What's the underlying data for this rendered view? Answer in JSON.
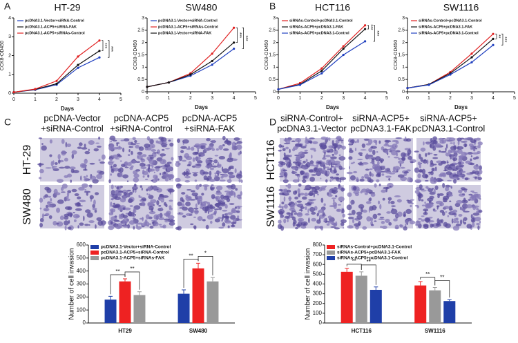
{
  "panels": {
    "letters": [
      "A",
      "B",
      "C",
      "D"
    ],
    "c_headers": [
      [
        "pcDNA-Vector",
        "+siRNA-Control"
      ],
      [
        "pcDNA-ACP5",
        "+siRNA-Control"
      ],
      [
        "pcDNA-ACP5",
        "+siRNA-FAK"
      ]
    ],
    "c_rows": [
      "HT-29",
      "SW480"
    ],
    "d_headers": [
      [
        "siRNA-Control+",
        "pcDNA3.1-Vector"
      ],
      [
        "siRNA-ACP5+",
        "pcDNA3.1-FAK"
      ],
      [
        "siRNA-ACP5+",
        "pcDNA3.1-Control"
      ]
    ],
    "d_rows": [
      "HCT116",
      "SW1116"
    ]
  },
  "chart_data": [
    {
      "type": "line",
      "title": "HT-29",
      "x_label": "Days",
      "y_label": "CCK8-OD450",
      "x": [
        0,
        1,
        2,
        3,
        4
      ],
      "xlim": [
        0,
        5
      ],
      "xticks": [
        0,
        1,
        2,
        3,
        4,
        5
      ],
      "ylim": [
        0,
        4
      ],
      "yticks": [
        0,
        1,
        2,
        3,
        4
      ],
      "series": [
        {
          "name": "pcDNA3.1-Vector+siRNA-Control",
          "color": "#1f3fbf",
          "values": [
            0.05,
            0.18,
            0.45,
            1.35,
            1.9
          ]
        },
        {
          "name": "pcDNA3.1-ACP5+siRNA-FAK",
          "color": "#111111",
          "values": [
            0.05,
            0.2,
            0.5,
            1.5,
            2.25
          ]
        },
        {
          "name": "pcDNA3.1-ACP5+siRNAs-Control",
          "color": "#e02020",
          "values": [
            0.05,
            0.22,
            0.65,
            1.95,
            2.8
          ]
        }
      ],
      "annotations": [
        "***",
        "***"
      ]
    },
    {
      "type": "line",
      "title": "SW480",
      "x_label": "Days",
      "y_label": "CCK8-OD450",
      "x": [
        0,
        1,
        2,
        3,
        4
      ],
      "xlim": [
        0,
        5
      ],
      "xticks": [
        0,
        1,
        2,
        3,
        4,
        5
      ],
      "ylim": [
        0,
        3
      ],
      "yticks": [
        0,
        0.5,
        1,
        1.5,
        2,
        2.5,
        3
      ],
      "series": [
        {
          "name": "pcDNA3.1-Vector+siRNA-Control",
          "color": "#1f3fbf",
          "values": [
            0.2,
            0.38,
            0.65,
            1.1,
            1.75
          ]
        },
        {
          "name": "pcDNA3.1-ACP5+siRNAs-Control",
          "color": "#e02020",
          "values": [
            0.2,
            0.38,
            0.75,
            1.55,
            2.6
          ]
        },
        {
          "name": "pcDNA3.1-Vector+siRNA-FAK",
          "color": "#111111",
          "values": [
            0.2,
            0.38,
            0.7,
            1.25,
            2.0
          ]
        }
      ],
      "annotations": [
        "***",
        "***"
      ]
    },
    {
      "type": "line",
      "title": "HCT116",
      "x_label": "Days",
      "y_label": "CCK8-OD450",
      "x": [
        0,
        1,
        2,
        3,
        4
      ],
      "xlim": [
        0,
        5
      ],
      "xticks": [
        0,
        1,
        2,
        3,
        4,
        5
      ],
      "ylim": [
        0,
        3
      ],
      "yticks": [
        0,
        0.5,
        1,
        1.5,
        2,
        2.5,
        3
      ],
      "series": [
        {
          "name": "siRNAs-Control+pcDNA3.1-Control",
          "color": "#e02020",
          "values": [
            0.1,
            0.35,
            0.95,
            1.85,
            2.7
          ]
        },
        {
          "name": "siRNAs-ACP5+pcDNA3.1-FAK",
          "color": "#111111",
          "values": [
            0.1,
            0.3,
            0.85,
            1.75,
            2.55
          ]
        },
        {
          "name": "siRNAs-ACP5+pcDNA3.1-Control",
          "color": "#1f3fbf",
          "values": [
            0.1,
            0.28,
            0.75,
            1.5,
            2.05
          ]
        }
      ],
      "annotations": [
        "***",
        "***"
      ]
    },
    {
      "type": "line",
      "title": "SW1116",
      "x_label": "Days",
      "y_label": "CCK8-OD450",
      "x": [
        0,
        1,
        2,
        3,
        4
      ],
      "xlim": [
        0,
        5
      ],
      "xticks": [
        0,
        1,
        2,
        3,
        4,
        5
      ],
      "ylim": [
        0,
        3
      ],
      "yticks": [
        0,
        0.5,
        1,
        1.5,
        2,
        2.5,
        3
      ],
      "series": [
        {
          "name": "siRNAs-Control+pcDNA3.1-Control",
          "color": "#e02020",
          "values": [
            0.15,
            0.3,
            0.8,
            1.55,
            2.35
          ]
        },
        {
          "name": "siRNAs-ACP5+pcDNA3.1-FAK",
          "color": "#111111",
          "values": [
            0.15,
            0.3,
            0.75,
            1.4,
            2.15
          ]
        },
        {
          "name": "siRNAs-ACP5+pcDNA3.1-Control",
          "color": "#1f3fbf",
          "values": [
            0.15,
            0.28,
            0.7,
            1.2,
            1.9
          ]
        }
      ],
      "annotations": [
        "**",
        "***"
      ]
    },
    {
      "type": "bar",
      "y_label": "Number of cell invasion",
      "categories": [
        "HT29",
        "SW480"
      ],
      "ylim": [
        0,
        600
      ],
      "yticks": [
        0,
        100,
        200,
        300,
        400,
        500,
        600
      ],
      "series": [
        {
          "name": "pcDNA3.1-Vector+siRNA-Control",
          "color": "#1f3fa8",
          "values": [
            180,
            225
          ],
          "errors": [
            25,
            30
          ]
        },
        {
          "name": "pcDNA3.1-ACP5+siRNA-Control",
          "color": "#ee2222",
          "values": [
            320,
            420
          ],
          "errors": [
            20,
            40
          ]
        },
        {
          "name": "pcDNA3.1-ACP5+siRNAs-FAK",
          "color": "#999999",
          "values": [
            215,
            320
          ],
          "errors": [
            25,
            30
          ]
        }
      ],
      "annotations": [
        "**",
        "**",
        "**",
        "*"
      ]
    },
    {
      "type": "bar",
      "y_label": "Number of cell invasion",
      "categories": [
        "HCT116",
        "SW1116"
      ],
      "ylim": [
        0,
        800
      ],
      "yticks": [
        0,
        100,
        200,
        300,
        400,
        500,
        600,
        700,
        800
      ],
      "series": [
        {
          "name": "siRNAs-Control+pcDNA3.1-Control",
          "color": "#ee2222",
          "values": [
            525,
            385
          ],
          "errors": [
            35,
            40
          ]
        },
        {
          "name": "siRNAs-ACP5+pcDNA3.1-FAK",
          "color": "#999999",
          "values": [
            485,
            335
          ],
          "errors": [
            40,
            30
          ]
        },
        {
          "name": "siRNAs-ACP5+pcDNA3.1-Control",
          "color": "#1f3fa8",
          "values": [
            340,
            225
          ],
          "errors": [
            30,
            15
          ]
        }
      ],
      "annotations": [
        "**",
        "**",
        "**",
        "**"
      ]
    }
  ]
}
